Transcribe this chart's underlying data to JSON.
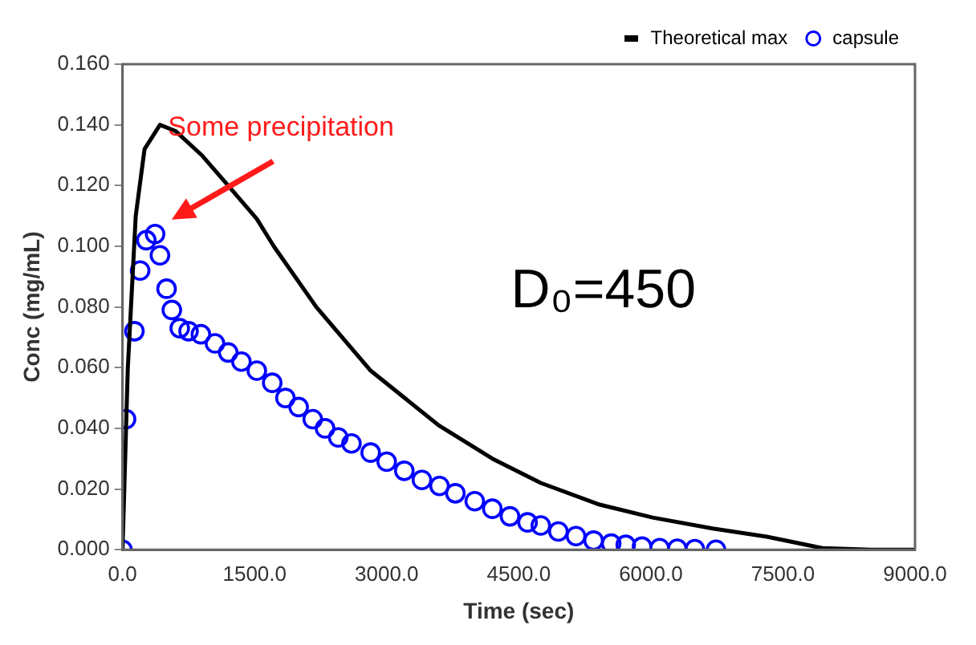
{
  "chart_data": {
    "type": "line",
    "xlabel": "Time (sec)",
    "ylabel": "Conc (mg/mL)",
    "xlim": [
      0,
      9000
    ],
    "ylim": [
      0,
      0.16
    ],
    "xticks": [
      {
        "value": 0,
        "label": "0.0"
      },
      {
        "value": 1500,
        "label": "1500.0"
      },
      {
        "value": 3000,
        "label": "3000.0"
      },
      {
        "value": 4500,
        "label": "4500.0"
      },
      {
        "value": 6000,
        "label": "6000.0"
      },
      {
        "value": 7500,
        "label": "7500.0"
      },
      {
        "value": 9000,
        "label": "9000.0"
      }
    ],
    "yticks": [
      {
        "value": 0,
        "label": "0.000"
      },
      {
        "value": 0.02,
        "label": "0.020"
      },
      {
        "value": 0.04,
        "label": "0.040"
      },
      {
        "value": 0.06,
        "label": "0.060"
      },
      {
        "value": 0.08,
        "label": "0.080"
      },
      {
        "value": 0.1,
        "label": "0.100"
      },
      {
        "value": 0.12,
        "label": "0.120"
      },
      {
        "value": 0.14,
        "label": "0.140"
      },
      {
        "value": 0.16,
        "label": "0.160"
      }
    ],
    "grid": false,
    "legend": "top right",
    "series": [
      {
        "name": "Theoretical max",
        "type": "line",
        "color": "#000000",
        "marker": "none",
        "x": [
          0,
          60,
          150,
          250,
          425,
          600,
          900,
          1200,
          1525,
          1718,
          2200,
          2818,
          3590,
          4200,
          4750,
          5400,
          6020,
          6700,
          7317,
          7950,
          8500,
          9000
        ],
        "values": [
          0,
          0.06,
          0.11,
          0.132,
          0.14,
          0.138,
          0.13,
          0.12,
          0.109,
          0.1,
          0.08,
          0.059,
          0.041,
          0.03,
          0.022,
          0.015,
          0.0106,
          0.007,
          0.0043,
          0.0005,
          0,
          0
        ]
      },
      {
        "name": "capsule",
        "type": "scatter",
        "color": "#0000ff",
        "marker": "circle",
        "x": [
          0,
          40,
          135,
          200,
          270,
          370,
          425,
          500,
          560,
          650,
          750,
          890,
          1050,
          1200,
          1350,
          1525,
          1700,
          1850,
          2000,
          2160,
          2300,
          2450,
          2600,
          2818,
          3000,
          3200,
          3400,
          3600,
          3780,
          4000,
          4200,
          4400,
          4600,
          4750,
          4950,
          5150,
          5350,
          5550,
          5715,
          5900,
          6100,
          6300,
          6500,
          6740
        ],
        "values": [
          0,
          0.043,
          0.072,
          0.092,
          0.102,
          0.104,
          0.097,
          0.086,
          0.079,
          0.073,
          0.072,
          0.071,
          0.068,
          0.065,
          0.062,
          0.059,
          0.055,
          0.05,
          0.047,
          0.043,
          0.04,
          0.037,
          0.035,
          0.032,
          0.029,
          0.026,
          0.023,
          0.021,
          0.0186,
          0.016,
          0.0135,
          0.011,
          0.009,
          0.008,
          0.006,
          0.0045,
          0.003,
          0.002,
          0.0016,
          0.001,
          0.0005,
          0.0003,
          0.0002,
          0
        ]
      }
    ],
    "annotations": [
      "Some precipitation",
      "D₀=450"
    ]
  }
}
